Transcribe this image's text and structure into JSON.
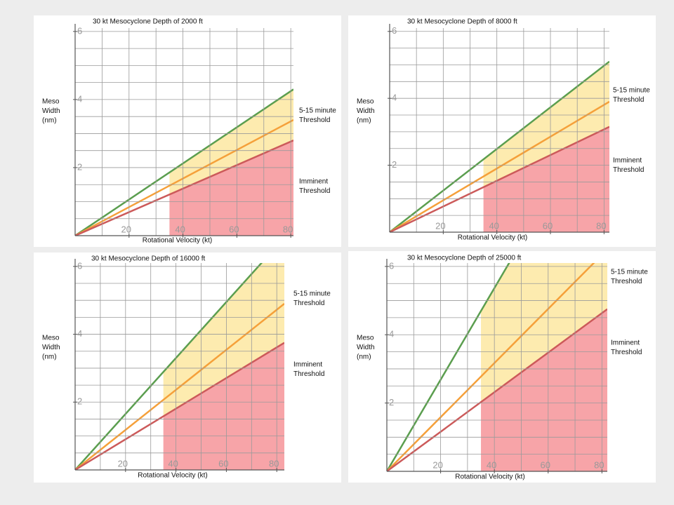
{
  "chart_data": [
    {
      "type": "line",
      "title": "30 kt Mesocyclone Depth of 2000 ft",
      "xlabel": "Rotational Velocity (kt)",
      "ylabel": [
        "Meso",
        "Width",
        "(nm)"
      ],
      "xlim": [
        0,
        81
      ],
      "ylim": [
        0,
        6.1
      ],
      "xticks": [
        20,
        40,
        60,
        80
      ],
      "yticks": [
        2,
        4,
        6
      ],
      "xgrid": [
        10,
        20,
        30,
        40,
        50,
        60,
        70,
        80
      ],
      "ygrid": [
        0.5,
        1,
        1.5,
        2,
        2.5,
        3,
        3.5,
        4,
        4.5,
        5,
        5.5,
        6
      ],
      "x": [
        0,
        81
      ],
      "shade_from": 35,
      "series": [
        {
          "color": "#5b9e4f",
          "values": [
            0,
            4.3
          ]
        },
        {
          "color": "#f5a03a",
          "values": [
            0,
            3.4
          ]
        },
        {
          "color": "#cc5a5a",
          "values": [
            0,
            2.8
          ]
        }
      ],
      "annotations": [
        [
          "5-15 minute",
          "Threshold"
        ],
        [
          "Imminent",
          "Threshold"
        ]
      ]
    },
    {
      "type": "line",
      "title": "30 kt Mesocyclone Depth of 8000 ft",
      "xlabel": "Rotational Velocity (kt)",
      "ylabel": [
        "Meso",
        "Width",
        "(nm)"
      ],
      "xlim": [
        0,
        82
      ],
      "ylim": [
        0,
        6.1
      ],
      "xticks": [
        20,
        40,
        60,
        80
      ],
      "yticks": [
        2,
        4,
        6
      ],
      "xgrid": [
        10,
        20,
        30,
        40,
        50,
        60,
        70,
        80
      ],
      "ygrid": [
        0.5,
        1,
        1.5,
        2,
        2.5,
        3,
        3.5,
        4,
        4.5,
        5,
        5.5,
        6
      ],
      "x": [
        0,
        82
      ],
      "shade_from": 35,
      "series": [
        {
          "color": "#5b9e4f",
          "values": [
            0,
            5.1
          ]
        },
        {
          "color": "#f5a03a",
          "values": [
            0,
            3.9
          ]
        },
        {
          "color": "#cc5a5a",
          "values": [
            0,
            3.15
          ]
        }
      ],
      "annotations": [
        [
          "5-15 minute",
          "Threshold"
        ],
        [
          "Imminent",
          "Threshold"
        ]
      ]
    },
    {
      "type": "line",
      "title": "30 kt Mesocyclone Depth of 16000 ft",
      "xlabel": "Rotational Velocity (kt)",
      "ylabel": [
        "Meso",
        "Width",
        "(nm)"
      ],
      "xlim": [
        0,
        83
      ],
      "ylim": [
        0,
        6.1
      ],
      "xticks": [
        20,
        40,
        60,
        80
      ],
      "yticks": [
        2,
        4,
        6
      ],
      "xgrid": [
        10,
        20,
        30,
        40,
        50,
        60,
        70,
        80
      ],
      "ygrid": [
        0.5,
        1,
        1.5,
        2,
        2.5,
        3,
        3.5,
        4,
        4.5,
        5,
        5.5,
        6
      ],
      "x": [
        0,
        83
      ],
      "shade_from": 35,
      "series": [
        {
          "color": "#5b9e4f",
          "values": [
            0,
            6.85
          ]
        },
        {
          "color": "#f5a03a",
          "values": [
            0,
            4.9
          ]
        },
        {
          "color": "#cc5a5a",
          "values": [
            0,
            3.75
          ]
        }
      ],
      "annotations": [
        [
          "5-15 minute",
          "Threshold"
        ],
        [
          "Imminent",
          "Threshold"
        ]
      ]
    },
    {
      "type": "line",
      "title": "30 kt Mesocyclone Depth of 25000 ft",
      "xlabel": "Rotational Velocity (kt)",
      "ylabel": [
        "Meso",
        "Width",
        "(nm)"
      ],
      "xlim": [
        0,
        82
      ],
      "ylim": [
        0,
        6.1
      ],
      "xticks": [
        20,
        40,
        60,
        80
      ],
      "yticks": [
        2,
        4,
        6
      ],
      "xgrid": [
        10,
        20,
        30,
        40,
        50,
        60,
        70,
        80
      ],
      "ygrid": [
        0.5,
        1,
        1.5,
        2,
        2.5,
        3,
        3.5,
        4,
        4.5,
        5,
        5.5,
        6
      ],
      "x": [
        0,
        82
      ],
      "shade_from": 35,
      "series": [
        {
          "color": "#5b9e4f",
          "values": [
            0,
            11
          ]
        },
        {
          "color": "#f5a03a",
          "values": [
            0,
            6.5
          ]
        },
        {
          "color": "#cc5a5a",
          "values": [
            0,
            4.75
          ]
        }
      ],
      "annotations": [
        [
          "5-15 minute",
          "Threshold"
        ],
        [
          "Imminent",
          "Threshold"
        ]
      ]
    }
  ]
}
